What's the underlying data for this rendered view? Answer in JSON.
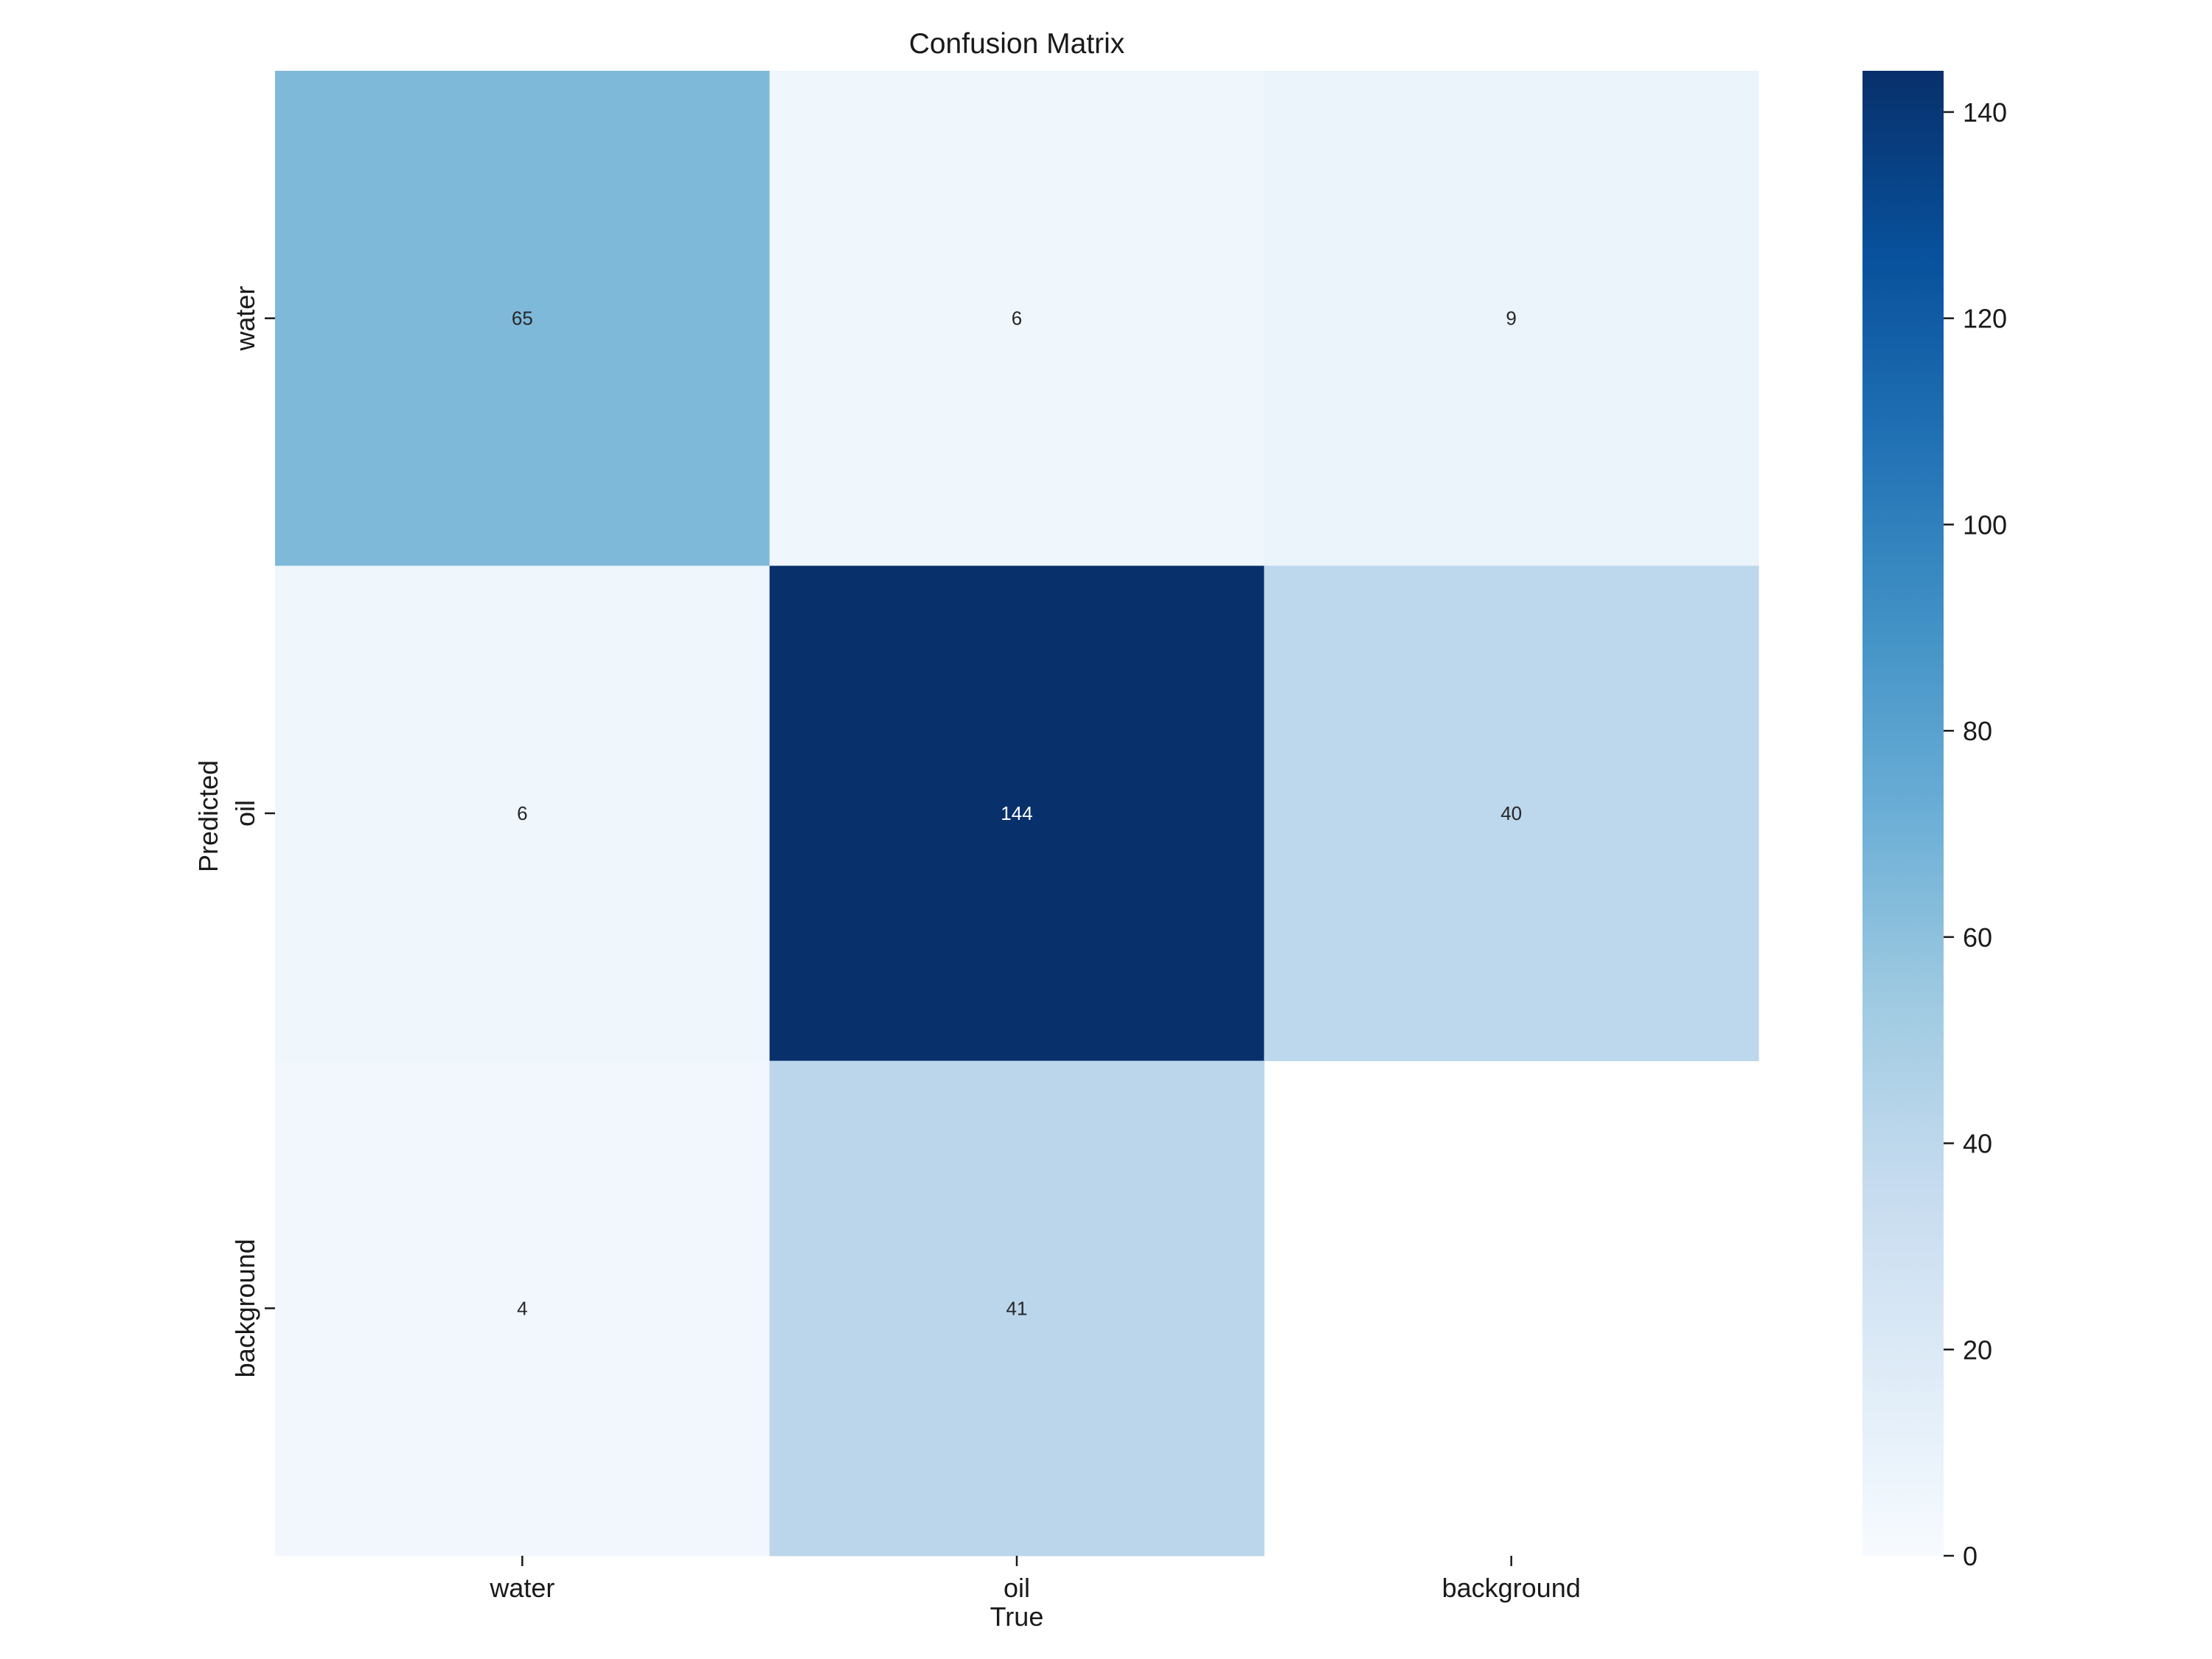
{
  "chart_data": {
    "type": "heatmap",
    "title": "Confusion Matrix",
    "xlabel": "True",
    "ylabel": "Predicted",
    "x_categories": [
      "water",
      "oil",
      "background"
    ],
    "y_categories": [
      "water",
      "oil",
      "background"
    ],
    "values": [
      [
        65,
        6,
        9
      ],
      [
        6,
        144,
        40
      ],
      [
        4,
        41,
        null
      ]
    ],
    "cell_labels": [
      [
        "65",
        "6",
        "9"
      ],
      [
        "6",
        "144",
        "40"
      ],
      [
        "4",
        "41",
        ""
      ]
    ],
    "colorbar": {
      "range": [
        0,
        144
      ],
      "ticks": [
        0,
        20,
        40,
        60,
        80,
        100,
        120,
        140
      ],
      "tick_labels": [
        "0",
        "20",
        "40",
        "60",
        "80",
        "100",
        "120",
        "140"
      ]
    },
    "colormap": [
      "#f7fbff",
      "#deebf7",
      "#c6dbef",
      "#9ecae1",
      "#6baed6",
      "#4292c6",
      "#2171b5",
      "#08519c",
      "#08306b"
    ],
    "grid": false,
    "legend": "colorbar-right"
  }
}
